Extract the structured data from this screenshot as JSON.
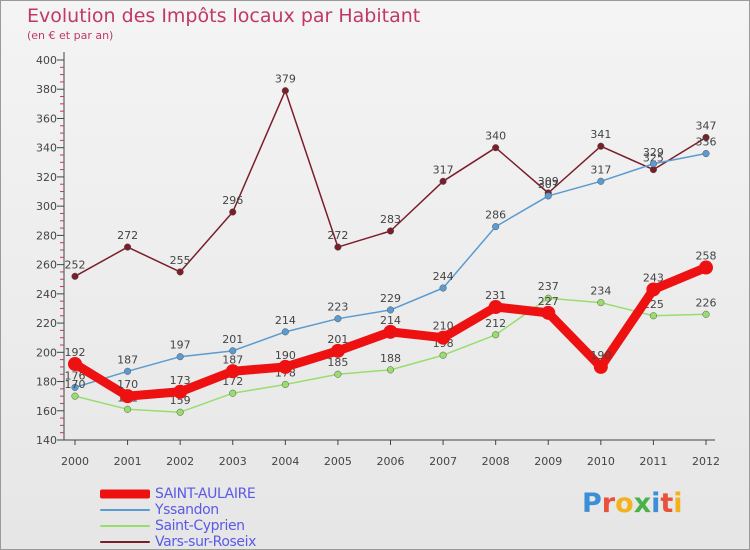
{
  "chart_data": {
    "type": "line",
    "title": "Evolution des Impôts locaux par Habitant",
    "subtitle": "(en € et par an)",
    "xlabel": "",
    "ylabel": "",
    "ylim": [
      140,
      400
    ],
    "y_ticks": [
      140,
      160,
      180,
      200,
      220,
      240,
      260,
      280,
      300,
      320,
      340,
      360,
      380,
      400
    ],
    "categories": [
      "2000",
      "2001",
      "2002",
      "2003",
      "2004",
      "2005",
      "2006",
      "2007",
      "2008",
      "2009",
      "2010",
      "2011",
      "2012"
    ],
    "grid": false,
    "legend_position": "bottom-left",
    "series": [
      {
        "name": "Vars-sur-Roseix",
        "color": "#7a1e2a",
        "values": [
          252,
          272,
          255,
          296,
          379,
          272,
          283,
          317,
          340,
          309,
          341,
          325,
          347
        ]
      },
      {
        "name": "Yssandon",
        "color": "#5b9bd0",
        "values": [
          176,
          187,
          197,
          201,
          214,
          223,
          229,
          244,
          286,
          307,
          317,
          329,
          336
        ]
      },
      {
        "name": "Saint-Cyprien",
        "color": "#99dd6e",
        "values": [
          170,
          161,
          159,
          172,
          178,
          185,
          188,
          198,
          212,
          237,
          234,
          225,
          226
        ]
      },
      {
        "name": "SAINT-AULAIRE",
        "color": "#ee1111",
        "values": [
          192,
          170,
          173,
          187,
          190,
          201,
          214,
          210,
          231,
          227,
          190,
          243,
          258
        ]
      }
    ]
  },
  "legend": {
    "items": [
      {
        "label": "SAINT-AULAIRE",
        "color": "#ee1111"
      },
      {
        "label": "Yssandon",
        "color": "#5b9bd0"
      },
      {
        "label": "Saint-Cyprien",
        "color": "#99dd6e"
      },
      {
        "label": "Vars-sur-Roseix",
        "color": "#7a1e2a"
      }
    ]
  },
  "logo": {
    "text": "Proxiti",
    "letter_colors": [
      "#3a8fd6",
      "#e8513a",
      "#f2b21a",
      "#49b349",
      "#3a8fd6",
      "#e8513a",
      "#f2b21a"
    ]
  }
}
